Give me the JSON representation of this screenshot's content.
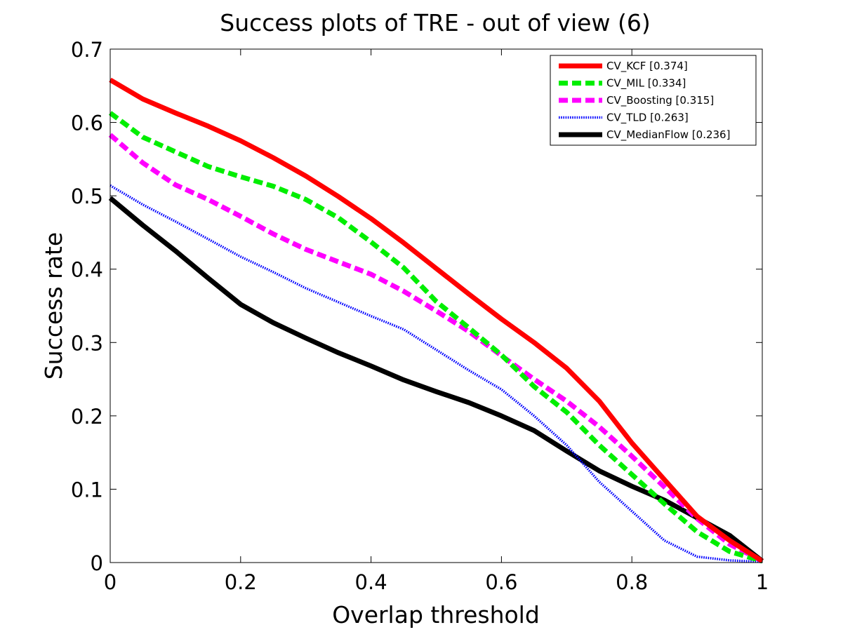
{
  "chart_data": {
    "type": "line",
    "title": "Success plots of TRE - out of view (6)",
    "xlabel": "Overlap threshold",
    "ylabel": "Success rate",
    "xlim": [
      0,
      1
    ],
    "ylim": [
      0,
      0.7
    ],
    "xticks": [
      "0",
      "0.2",
      "0.4",
      "0.6",
      "0.8",
      "1"
    ],
    "yticks": [
      "0",
      "0.1",
      "0.2",
      "0.3",
      "0.4",
      "0.5",
      "0.6",
      "0.7"
    ],
    "grid": false,
    "legend_position": "top-right",
    "x": [
      0,
      0.05,
      0.1,
      0.15,
      0.2,
      0.25,
      0.3,
      0.35,
      0.4,
      0.45,
      0.5,
      0.55,
      0.6,
      0.65,
      0.7,
      0.75,
      0.8,
      0.85,
      0.9,
      0.95,
      1
    ],
    "series": [
      {
        "name": "CV_KCF [0.374]",
        "color": "#ff0000",
        "style": "solid",
        "values": [
          0.658,
          0.632,
          0.613,
          0.595,
          0.575,
          0.552,
          0.527,
          0.499,
          0.469,
          0.436,
          0.401,
          0.366,
          0.332,
          0.3,
          0.265,
          0.22,
          0.163,
          0.113,
          0.063,
          0.03,
          0.002
        ]
      },
      {
        "name": "CV_MIL [0.334]",
        "color": "#00ee00",
        "style": "dashed",
        "values": [
          0.613,
          0.58,
          0.56,
          0.54,
          0.526,
          0.513,
          0.495,
          0.47,
          0.437,
          0.402,
          0.356,
          0.32,
          0.283,
          0.24,
          0.205,
          0.16,
          0.12,
          0.08,
          0.042,
          0.015,
          0.002
        ]
      },
      {
        "name": "CV_Boosting [0.315]",
        "color": "#ff00ff",
        "style": "dashed",
        "values": [
          0.583,
          0.545,
          0.515,
          0.495,
          0.472,
          0.448,
          0.427,
          0.41,
          0.393,
          0.37,
          0.343,
          0.315,
          0.282,
          0.25,
          0.22,
          0.185,
          0.145,
          0.103,
          0.06,
          0.025,
          0.002
        ]
      },
      {
        "name": "CV_TLD [0.263]",
        "color": "#0000ff",
        "style": "dotted",
        "values": [
          0.514,
          0.488,
          0.465,
          0.441,
          0.417,
          0.396,
          0.374,
          0.355,
          0.336,
          0.318,
          0.29,
          0.262,
          0.236,
          0.2,
          0.16,
          0.11,
          0.07,
          0.03,
          0.008,
          0.003,
          0.001
        ]
      },
      {
        "name": "CV_MedianFlow [0.236]",
        "color": "#000000",
        "style": "solid",
        "values": [
          0.497,
          0.46,
          0.425,
          0.388,
          0.352,
          0.327,
          0.306,
          0.286,
          0.268,
          0.249,
          0.233,
          0.218,
          0.2,
          0.18,
          0.152,
          0.125,
          0.104,
          0.085,
          0.061,
          0.037,
          0.002
        ]
      }
    ]
  }
}
